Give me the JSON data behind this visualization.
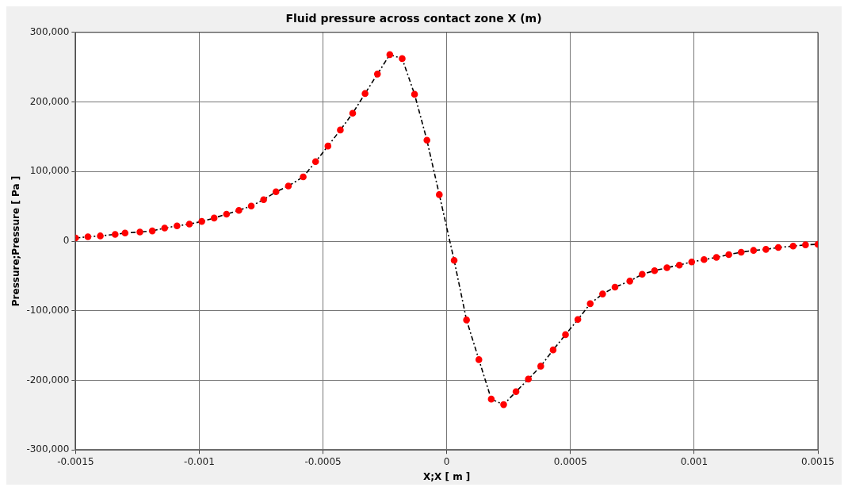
{
  "chart_data": {
    "type": "line",
    "title": "Fluid pressure across contact zone X (m)",
    "xlabel": "X;X [ m ]",
    "ylabel": "Pressure;Pressure [ Pa ]",
    "xlim": [
      -0.0015,
      0.0015
    ],
    "xticks": [
      -0.0015,
      -0.001,
      -0.0005,
      0,
      0.0005,
      0.001,
      0.0015
    ],
    "ylim": [
      -300000,
      300000
    ],
    "yticks": [
      {
        "value": -300000,
        "label": "-300,000"
      },
      {
        "value": -200000,
        "label": "-200,000"
      },
      {
        "value": -100000,
        "label": "-100,000"
      },
      {
        "value": 0,
        "label": "0"
      },
      {
        "value": 100000,
        "label": "100,000"
      },
      {
        "value": 200000,
        "label": "200,000"
      },
      {
        "value": 300000,
        "label": "300,000"
      }
    ],
    "grid": true,
    "legend": false,
    "marker": "circle",
    "line_style": "dashed",
    "x": [
      -0.0015,
      -0.00145,
      -0.0014,
      -0.00134,
      -0.0013,
      -0.00124,
      -0.00119,
      -0.00114,
      -0.00109,
      -0.00104,
      -0.00099,
      -0.00094,
      -0.00089,
      -0.00084,
      -0.00079,
      -0.00074,
      -0.00069,
      -0.00064,
      -0.00058,
      -0.00053,
      -0.00048,
      -0.00043,
      -0.00038,
      -0.00033,
      -0.00028,
      -0.00023,
      -0.00018,
      -0.00013,
      -8e-05,
      -3e-05,
      3e-05,
      8e-05,
      0.00013,
      0.00018,
      0.00023,
      0.00028,
      0.00033,
      0.00038,
      0.00043,
      0.00048,
      0.00053,
      0.00058,
      0.00063,
      0.00068,
      0.00074,
      0.00079,
      0.00084,
      0.00089,
      0.00094,
      0.00099,
      0.00104,
      0.00109,
      0.00114,
      0.00119,
      0.00124,
      0.00129,
      0.00134,
      0.0014,
      0.00145,
      0.0015
    ],
    "series": [
      {
        "color": "#000000",
        "colors": [
          "#ff0000",
          "#ff0000",
          "#ff0000",
          "#ff0000",
          "#ff0000",
          "#ff0000",
          "#ff0000",
          "#ff0000",
          "#ff0000",
          "#ff0000",
          "#ff0000",
          "#ff0000",
          "#ff0000",
          "#ff0000",
          "#ff0000",
          "#ff0000",
          "#ff0000",
          "#ff0000",
          "#ff0000",
          "#ff0000",
          "#ff0000",
          "#ff0000",
          "#ff0000",
          "#ff0000",
          "#ff0000",
          "#ff0000",
          "#ff0000",
          "#ff0000",
          "#ff0000",
          "#ff0000",
          "#ff0000",
          "#ff0000",
          "#ff0000",
          "#ff0000",
          "#ff0000",
          "#ff0000",
          "#ff0000",
          "#ff0000",
          "#ff0000",
          "#ff0000",
          "#ff0000",
          "#ff0000",
          "#ff0000",
          "#ff0000",
          "#ff0000",
          "#ff0000",
          "#ff0000",
          "#ff0000",
          "#ff0000",
          "#ff0000",
          "#ff0000",
          "#ff0000",
          "#ff0000",
          "#ff0000",
          "#ff0000",
          "#ff0000",
          "#ff0000",
          "#ff0000",
          "#ff0000",
          "#ff0000"
        ],
        "values": [
          4500,
          6300,
          7500,
          9700,
          11700,
          13100,
          14700,
          18800,
          21900,
          24500,
          28300,
          33200,
          38800,
          44200,
          50500,
          59600,
          70900,
          79300,
          92300,
          114200,
          136600,
          159700,
          183800,
          212100,
          240100,
          268000,
          262300,
          211000,
          145000,
          66800,
          -27600,
          -113300,
          -170300,
          -227000,
          -234900,
          -216300,
          -198200,
          -179700,
          -156300,
          -134400,
          -112600,
          -89900,
          -75900,
          -66100,
          -57400,
          -47600,
          -42400,
          -38200,
          -34400,
          -29900,
          -26500,
          -23400,
          -19300,
          -15900,
          -13300,
          -11800,
          -9100,
          -7200,
          -5300,
          -4500
        ]
      }
    ]
  }
}
